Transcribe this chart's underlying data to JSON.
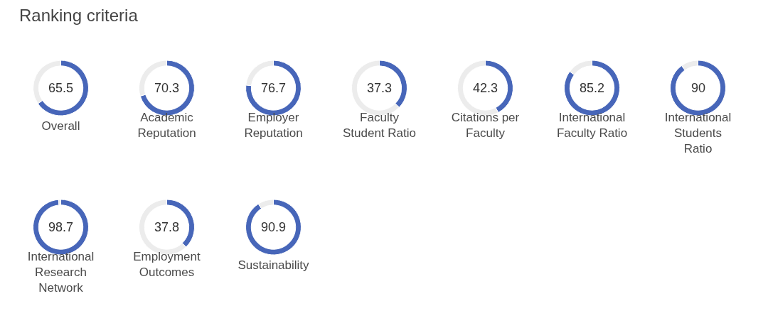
{
  "chart_data": [
    {
      "type": "other",
      "title": "Ranking criteria"
    },
    {
      "type": "donut",
      "title": "Overall",
      "categories": [
        null,
        null
      ],
      "values": [
        65.5,
        34.5
      ],
      "colors": [
        "#4766b9",
        "#ececec"
      ],
      "value_labels": [
        "65.5",
        null
      ]
    },
    {
      "type": "donut",
      "title": "Academic Reputation",
      "categories": [
        null,
        null
      ],
      "values": [
        70.3,
        29.7
      ],
      "colors": [
        "#4766b9",
        "#ececec"
      ],
      "value_labels": [
        "70.3",
        null
      ]
    },
    {
      "type": "donut",
      "title": "Employer Reputation",
      "categories": [
        null,
        null
      ],
      "values": [
        76.7,
        23.3
      ],
      "colors": [
        "#4766b9",
        "#ececec"
      ],
      "value_labels": [
        "76.7",
        null
      ]
    },
    {
      "type": "donut",
      "title": "Faculty Student Ratio",
      "categories": [
        null,
        null
      ],
      "values": [
        37.3,
        62.7
      ],
      "colors": [
        "#4766b9",
        "#ececec"
      ],
      "value_labels": [
        "37.3",
        null
      ]
    },
    {
      "type": "donut",
      "title": "Citations per Faculty",
      "categories": [
        null,
        null
      ],
      "values": [
        42.3,
        57.7
      ],
      "colors": [
        "#4766b9",
        "#ececec"
      ],
      "value_labels": [
        "42.3",
        null
      ]
    },
    {
      "type": "donut",
      "title": "International Faculty Ratio",
      "categories": [
        null,
        null
      ],
      "values": [
        85.2,
        14.8
      ],
      "colors": [
        "#4766b9",
        "#ececec"
      ],
      "value_labels": [
        "85.2",
        null
      ]
    },
    {
      "type": "donut",
      "title": "International Students Ratio",
      "categories": [
        null,
        null
      ],
      "values": [
        90,
        10
      ],
      "colors": [
        "#4766b9",
        "#ececec"
      ],
      "value_labels": [
        "90",
        null
      ]
    },
    {
      "type": "donut",
      "title": "International Research Network",
      "categories": [
        null,
        null
      ],
      "values": [
        98.7,
        1.3
      ],
      "colors": [
        "#4766b9",
        "#ececec"
      ],
      "value_labels": [
        "98.7",
        null
      ]
    },
    {
      "type": "donut",
      "title": "Employment Outcomes",
      "categories": [
        null,
        null
      ],
      "values": [
        37.8,
        62.2
      ],
      "colors": [
        "#4766b9",
        "#ececec"
      ],
      "value_labels": [
        "37.8",
        null
      ]
    },
    {
      "type": "donut",
      "title": "Sustainability",
      "categories": [
        null,
        null
      ],
      "values": [
        90.9,
        9.1
      ],
      "colors": [
        "#4766b9",
        "#ececec"
      ],
      "value_labels": [
        "90.9",
        null
      ]
    }
  ]
}
